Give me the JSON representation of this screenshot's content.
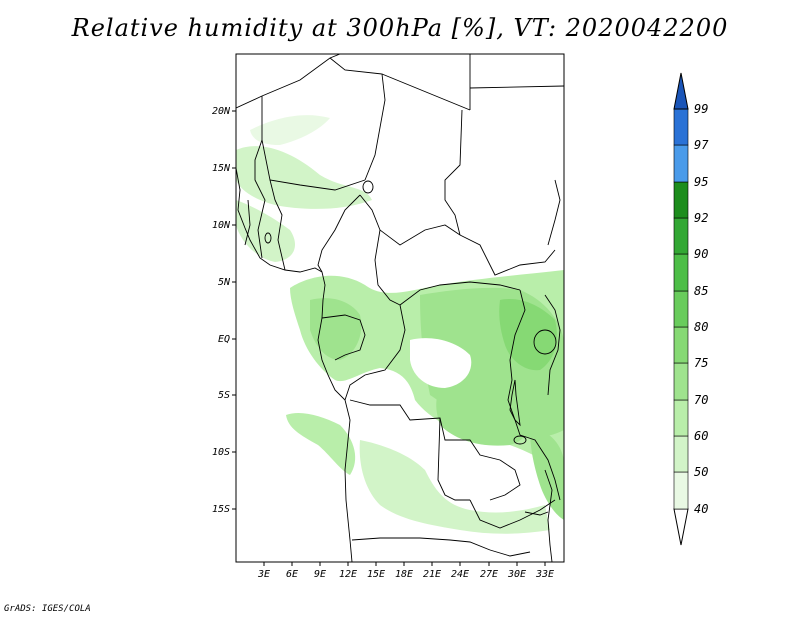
{
  "title": "Relative humidity at 300hPa [%], VT: 2020042200",
  "credit": "GrADS: IGES/COLA",
  "map": {
    "lat_labels": [
      "20N",
      "15N",
      "10N",
      "5N",
      "EQ",
      "5S",
      "10S",
      "15S"
    ],
    "lon_labels": [
      "3E",
      "6E",
      "9E",
      "12E",
      "15E",
      "18E",
      "21E",
      "24E",
      "27E",
      "30E",
      "33E"
    ]
  },
  "colorbar": {
    "labels": [
      "40",
      "50",
      "60",
      "70",
      "75",
      "80",
      "85",
      "90",
      "92",
      "95",
      "97",
      "99"
    ],
    "colors": [
      "#ffffff",
      "#e9f9e4",
      "#d2f4c8",
      "#b9eeaa",
      "#9fe38e",
      "#86d974",
      "#69cc5c",
      "#4dbe47",
      "#33a834",
      "#1d8d1d",
      "#4a9bea",
      "#2a72d6",
      "#1a55b8"
    ]
  }
}
